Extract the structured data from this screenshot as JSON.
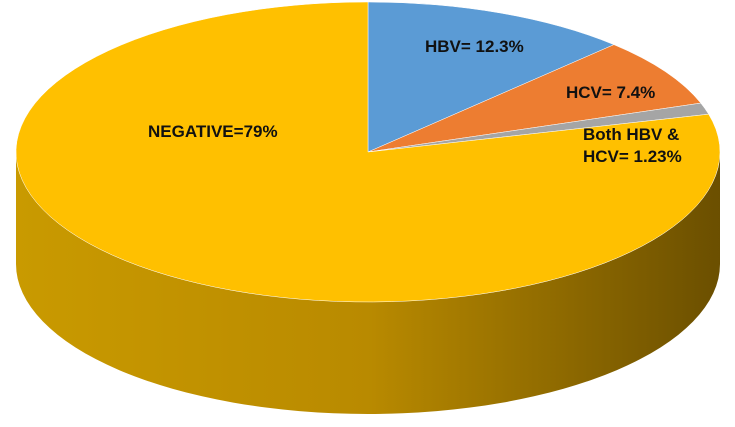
{
  "chart_data": {
    "type": "pie",
    "values": [
      12.3,
      7.4,
      1.23,
      79
    ],
    "value_labels": [
      "HBV= 12.3%",
      "HCV= 7.4%",
      "Both HBV & HCV= 1.23%",
      "NEGATIVE=79%"
    ],
    "colors": [
      "#5b9bd5",
      "#ed7d31",
      "#a5a5a5",
      "#ffc000"
    ]
  }
}
